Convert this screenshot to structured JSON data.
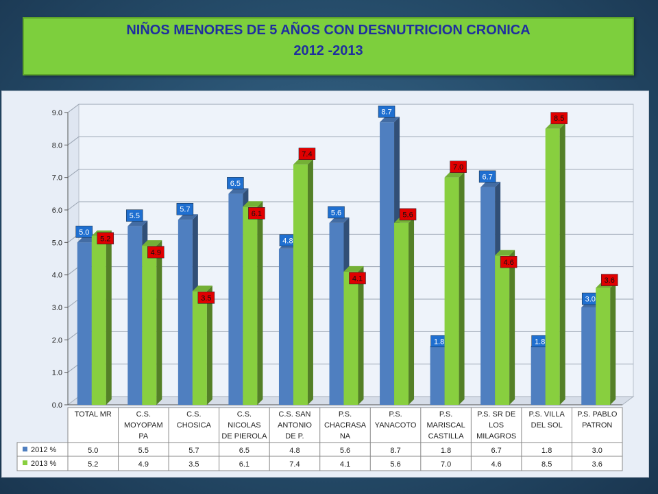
{
  "title": {
    "line1": "NIÑOS MENORES DE 5 AÑOS CON DESNUTRICION CRONICA",
    "line2": "2012 -2013"
  },
  "colors": {
    "series_2012": "#4f7fc0",
    "series_2013": "#88cf3f",
    "label_2012_bg": "#1f6fd0",
    "label_2013_bg": "#e00000"
  },
  "chart_data": {
    "type": "bar",
    "categories": [
      [
        "TOTAL MR"
      ],
      [
        "C.S.",
        "MOYOPAM",
        "PA"
      ],
      [
        "C.S.",
        "CHOSICA"
      ],
      [
        "C.S.",
        "NICOLAS",
        "DE PIEROLA"
      ],
      [
        "C.S. SAN",
        "ANTONIO",
        "DE P."
      ],
      [
        "P.S.",
        "CHACRASA",
        "NA"
      ],
      [
        "P.S.",
        "YANACOTO"
      ],
      [
        "P.S.",
        "MARISCAL",
        "CASTILLA"
      ],
      [
        "P.S. SR DE",
        "LOS",
        "MILAGROS"
      ],
      [
        "P.S. VILLA",
        "DEL SOL"
      ],
      [
        "P.S. PABLO",
        "PATRON"
      ]
    ],
    "series": [
      {
        "name": "2012 %",
        "values": [
          5.0,
          5.5,
          5.7,
          6.5,
          4.8,
          5.6,
          8.7,
          1.8,
          6.7,
          1.8,
          3.0
        ],
        "labels": [
          "5.0",
          "5.5",
          "5.7",
          "6.5",
          "4.8",
          "5.6",
          "8.7",
          "1.8",
          "6.7",
          "1.8",
          "3.0"
        ]
      },
      {
        "name": "2013 %",
        "values": [
          5.2,
          4.9,
          3.5,
          6.1,
          7.4,
          4.1,
          5.6,
          7.0,
          4.6,
          8.5,
          3.6
        ],
        "labels": [
          "5.2",
          "4.9",
          "3.5",
          "6.1",
          "7.4",
          "4.1",
          "5.6",
          "7.0",
          "4.6",
          "8.5",
          "3.6"
        ]
      }
    ],
    "yticks": [
      "0.0",
      "1.0",
      "2.0",
      "3.0",
      "4.0",
      "5.0",
      "6.0",
      "7.0",
      "8.0",
      "9.0"
    ],
    "ylim": [
      0,
      9
    ],
    "grid": true,
    "legend": "data-table"
  }
}
